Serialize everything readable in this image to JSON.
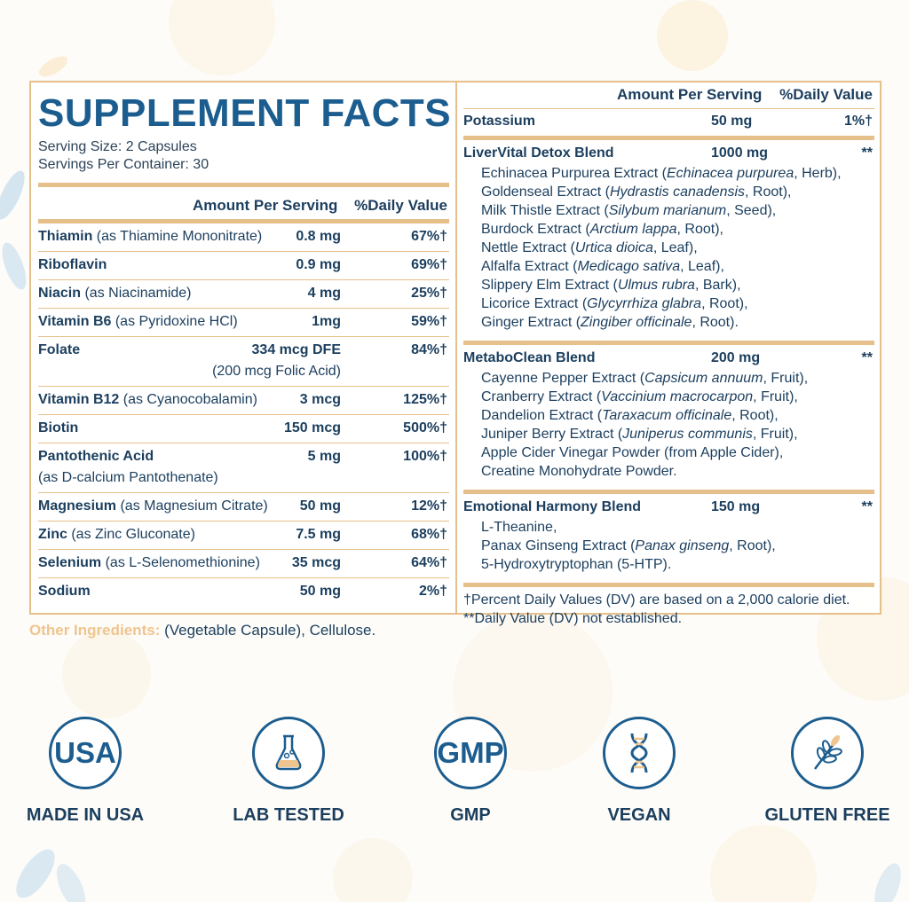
{
  "title": "SUPPLEMENT FACTS",
  "serving_size": "Serving Size: 2 Capsules",
  "servings_per_container": "Servings Per Container: 30",
  "header": {
    "amount": "Amount Per Serving",
    "dv": "%Daily Value"
  },
  "nutrients": [
    {
      "name": "Thiamin",
      "source": " (as Thiamine Mononitrate)",
      "amount": "0.8 mg",
      "dv": "67%†"
    },
    {
      "name": "Riboflavin",
      "source": "",
      "amount": "0.9 mg",
      "dv": "69%†"
    },
    {
      "name": "Niacin",
      "source": " (as Niacinamide)",
      "amount": "4 mg",
      "dv": "25%†"
    },
    {
      "name": "Vitamin B6",
      "source": " (as Pyridoxine HCl)",
      "amount": "1mg",
      "dv": "59%†"
    },
    {
      "name": "Folate",
      "source": "",
      "amount": "334 mcg DFE",
      "sub": "(200 mcg Folic Acid)",
      "dv": "84%†"
    },
    {
      "name": "Vitamin B12",
      "source": " (as Cyanocobalamin)",
      "amount": "3 mcg",
      "dv": "125%†"
    },
    {
      "name": "Biotin",
      "source": "",
      "amount": "150 mcg",
      "dv": "500%†"
    },
    {
      "name": "Pantothenic Acid",
      "source": "",
      "sub": "(as D-calcium Pantothenate)",
      "amount": "5 mg",
      "dv": "100%†"
    },
    {
      "name": "Magnesium",
      "source": " (as Magnesium Citrate)",
      "amount": "50 mg",
      "dv": "12%†"
    },
    {
      "name": "Zinc",
      "source": " (as Zinc Gluconate)",
      "amount": "7.5 mg",
      "dv": "68%†"
    },
    {
      "name": "Selenium",
      "source": " (as L-Selenomethionine)",
      "amount": "35 mcg",
      "dv": "64%†"
    },
    {
      "name": "Sodium",
      "source": "",
      "amount": "50 mg",
      "dv": "2%†"
    }
  ],
  "potassium": {
    "name": "Potassium",
    "amount": "50 mg",
    "dv": "1%†"
  },
  "blends": [
    {
      "name": "LiverVital Detox Blend",
      "amount": "1000 mg",
      "dv": "**",
      "ingredients": [
        {
          "a": "Echinacea Purpurea Extract (",
          "i": "Echinacea purpurea",
          "b": ", Herb),"
        },
        {
          "a": "Goldenseal Extract (",
          "i": "Hydrastis canadensis",
          "b": ", Root),"
        },
        {
          "a": "Milk Thistle Extract (",
          "i": "Silybum marianum",
          "b": ", Seed),"
        },
        {
          "a": "Burdock Extract (",
          "i": "Arctium lappa",
          "b": ", Root),"
        },
        {
          "a": "Nettle Extract (",
          "i": "Urtica dioica",
          "b": ", Leaf),"
        },
        {
          "a": "Alfalfa Extract (",
          "i": "Medicago sativa",
          "b": ", Leaf),"
        },
        {
          "a": "Slippery Elm Extract (",
          "i": "Ulmus rubra",
          "b": ", Bark),"
        },
        {
          "a": "Licorice Extract (",
          "i": "Glycyrrhiza glabra",
          "b": ", Root),"
        },
        {
          "a": "Ginger Extract (",
          "i": "Zingiber officinale",
          "b": ", Root)."
        }
      ]
    },
    {
      "name": "MetaboClean Blend",
      "amount": "200 mg",
      "dv": "**",
      "ingredients": [
        {
          "a": "Cayenne Pepper Extract (",
          "i": "Capsicum annuum",
          "b": ", Fruit),"
        },
        {
          "a": "Cranberry Extract (",
          "i": "Vaccinium macrocarpon",
          "b": ", Fruit),"
        },
        {
          "a": "Dandelion Extract (",
          "i": "Taraxacum officinale",
          "b": ", Root),"
        },
        {
          "a": "Juniper Berry Extract (",
          "i": "Juniperus communis",
          "b": ", Fruit),"
        },
        {
          "a": "Apple Cider Vinegar Powder (from Apple Cider),",
          "i": "",
          "b": ""
        },
        {
          "a": "Creatine Monohydrate Powder.",
          "i": "",
          "b": ""
        }
      ]
    },
    {
      "name": "Emotional Harmony Blend",
      "amount": "150 mg",
      "dv": "**",
      "ingredients": [
        {
          "a": "L-Theanine,",
          "i": "",
          "b": ""
        },
        {
          "a": "Panax Ginseng Extract (",
          "i": "Panax ginseng",
          "b": ", Root),"
        },
        {
          "a": "5-Hydroxytryptophan (5-HTP).",
          "i": "",
          "b": ""
        }
      ]
    }
  ],
  "footnotes": [
    "†Percent Daily Values (DV) are based on a 2,000 calorie diet.",
    "**Daily Value (DV) not established."
  ],
  "other_ingredients": {
    "label": "Other Ingredients:",
    "text": " (Vegetable Capsule), Cellulose."
  },
  "badges": [
    {
      "icon": "usa-text-icon",
      "icon_text": "USA",
      "label": "MADE IN USA"
    },
    {
      "icon": "lab-flask-icon",
      "icon_text": "",
      "label": "LAB TESTED"
    },
    {
      "icon": "gmp-text-icon",
      "icon_text": "GMP",
      "label": "GMP"
    },
    {
      "icon": "dna-icon",
      "icon_text": "",
      "label": "VEGAN"
    },
    {
      "icon": "wheat-icon",
      "icon_text": "",
      "label": "GLUTEN FREE"
    }
  ],
  "colors": {
    "navy": "#1b3e5e",
    "blue": "#1c5d8f",
    "gold": "#e6c08a",
    "accent": "#f0c48e"
  }
}
